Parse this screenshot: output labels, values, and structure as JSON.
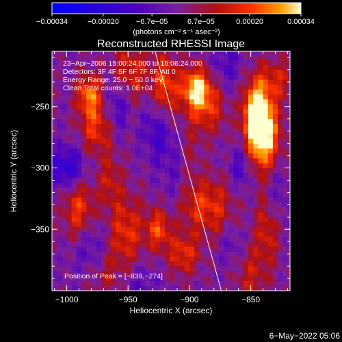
{
  "chart_data": {
    "type": "heatmap",
    "title": "Reconstructed RHESSI Image",
    "xlabel": "Heliocentric X (arcsec)",
    "ylabel": "Heliocentric Y (arcsec)",
    "xlim": [
      -1012,
      -818
    ],
    "ylim": [
      -400,
      -205
    ],
    "x_ticks": [
      -1000,
      -950,
      -900,
      -850
    ],
    "x_tick_labels": [
      "−1000",
      "−950",
      "−900",
      "−850"
    ],
    "y_ticks": [
      -250,
      -300,
      -350
    ],
    "y_tick_labels": [
      "−250",
      "−300",
      "−350"
    ],
    "colorbar": {
      "range": [
        -0.00034,
        0.00034
      ],
      "ticks": [
        -0.00034,
        -0.0002,
        -6.7e-05,
        6.7e-05,
        0.0002,
        0.00034
      ],
      "tick_labels": [
        "−0.00034",
        "−0.00020",
        "−6.7e−05",
        "6.7e−05",
        "0.00020",
        "0.00034"
      ],
      "units_label": "(photons cm⁻² s⁻¹ asec⁻²)",
      "colors": [
        "#0000ff",
        "#4a00c0",
        "#7a1ea0",
        "#b01010",
        "#ff3000",
        "#ffa000",
        "#ffffd0"
      ]
    },
    "annotations": [
      "23−Apr−2006 15:00:24.000 to 15:06:24.000",
      "Detectors: 3F 4F 5F 6F 7F 8F, Att 0",
      "Energy Range: 25.0 − 50.0 keV",
      "Clean      Total counts: 1.0E+04"
    ],
    "peak_label": "Position of Peak = [−839,−274]",
    "peak": [
      -839,
      -274
    ],
    "limb_line": [
      [
        -928,
        -205
      ],
      [
        -874,
        -400
      ]
    ],
    "grid": false,
    "sources": [
      {
        "x": -982,
        "y": -240,
        "amp": 0.00024
      },
      {
        "x": -976,
        "y": -268,
        "amp": 0.00018
      },
      {
        "x": -948,
        "y": -222,
        "amp": 0.00016
      },
      {
        "x": -920,
        "y": -236,
        "amp": 0.00022
      },
      {
        "x": -895,
        "y": -235,
        "amp": 0.0003
      },
      {
        "x": -886,
        "y": -252,
        "amp": 0.00016
      },
      {
        "x": -846,
        "y": -256,
        "amp": 0.00034
      },
      {
        "x": -839,
        "y": -274,
        "amp": 0.00034
      },
      {
        "x": -830,
        "y": -228,
        "amp": 0.00014
      },
      {
        "x": -965,
        "y": -310,
        "amp": 0.00012
      },
      {
        "x": -990,
        "y": -334,
        "amp": 0.0002
      },
      {
        "x": -952,
        "y": -352,
        "amp": 0.00018
      },
      {
        "x": -925,
        "y": -350,
        "amp": 0.0002
      },
      {
        "x": -898,
        "y": -328,
        "amp": 0.00014
      },
      {
        "x": -880,
        "y": -332,
        "amp": 0.00016
      },
      {
        "x": -836,
        "y": -348,
        "amp": 0.00016
      },
      {
        "x": -905,
        "y": -370,
        "amp": 0.00018
      },
      {
        "x": -970,
        "y": -386,
        "amp": 0.0001
      },
      {
        "x": -900,
        "y": -292,
        "amp": 0.00012
      },
      {
        "x": -850,
        "y": -388,
        "amp": 0.00012
      }
    ],
    "sinks": [
      {
        "x": -1000,
        "y": -300,
        "amp": -0.0002
      },
      {
        "x": -958,
        "y": -248,
        "amp": -0.00014
      },
      {
        "x": -925,
        "y": -268,
        "amp": -0.00016
      },
      {
        "x": -905,
        "y": -305,
        "amp": -0.0001
      },
      {
        "x": -858,
        "y": -300,
        "amp": -0.00012
      },
      {
        "x": -870,
        "y": -215,
        "amp": -0.0001
      },
      {
        "x": -980,
        "y": -365,
        "amp": -0.00012
      },
      {
        "x": -830,
        "y": -320,
        "amp": -0.0001
      },
      {
        "x": -865,
        "y": -362,
        "amp": -8e-05
      },
      {
        "x": -940,
        "y": -395,
        "amp": -8e-05
      }
    ]
  },
  "footer": {
    "timestamp": "6−May−2022 05:06"
  }
}
